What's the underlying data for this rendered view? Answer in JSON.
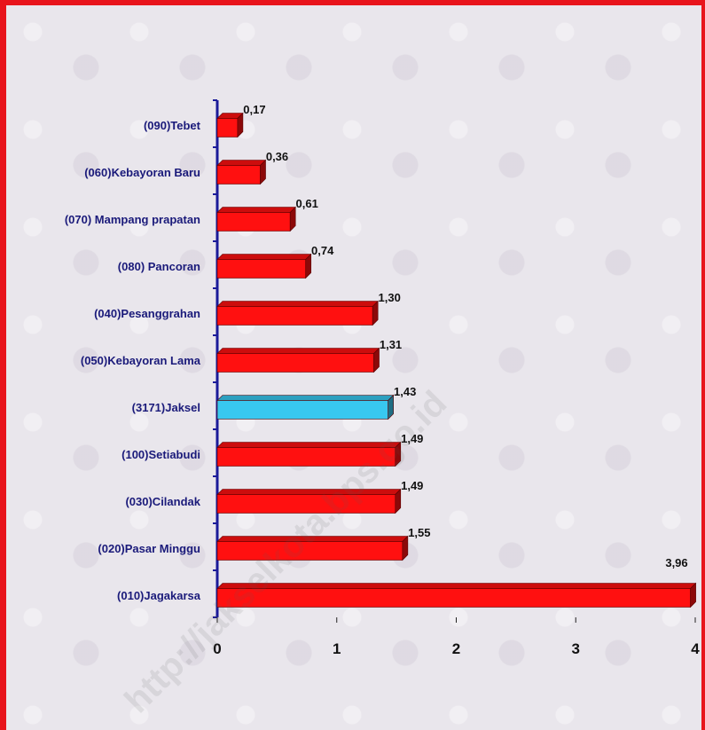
{
  "watermark": "http://jakselkota.bps.go.id",
  "colors": {
    "frame": "#e8141c",
    "background": "#e9e6ec",
    "bar": "#ff1010",
    "bar_highlight": "#38c8f0",
    "axis": "#1a1a99"
  },
  "chart_data": {
    "type": "bar",
    "orientation": "horizontal",
    "categories": [
      "(090)Tebet",
      "(060)Kebayoran Baru",
      "(070) Mampang prapatan",
      "(080) Pancoran",
      "(040)Pesanggrahan",
      "(050)Kebayoran Lama",
      "(3171)Jaksel",
      "(100)Setiabudi",
      "(030)Cilandak",
      "(020)Pasar Minggu",
      "(010)Jagakarsa"
    ],
    "values": [
      0.17,
      0.36,
      0.61,
      0.74,
      1.3,
      1.31,
      1.43,
      1.49,
      1.49,
      1.55,
      3.96
    ],
    "value_labels": [
      "0,17",
      "0,36",
      "0,61",
      "0,74",
      "1,30",
      "1,31",
      "1,43",
      "1,49",
      "1,49",
      "1,55",
      "3,96"
    ],
    "highlight_category": "(3171)Jaksel",
    "xlim": [
      0,
      4
    ],
    "x_ticks": [
      0,
      1,
      2,
      3,
      4
    ],
    "x_tick_labels": [
      "0",
      "1",
      "2",
      "3",
      "4"
    ],
    "grid": false,
    "legend": "none",
    "title": "",
    "xlabel": "",
    "ylabel": ""
  }
}
